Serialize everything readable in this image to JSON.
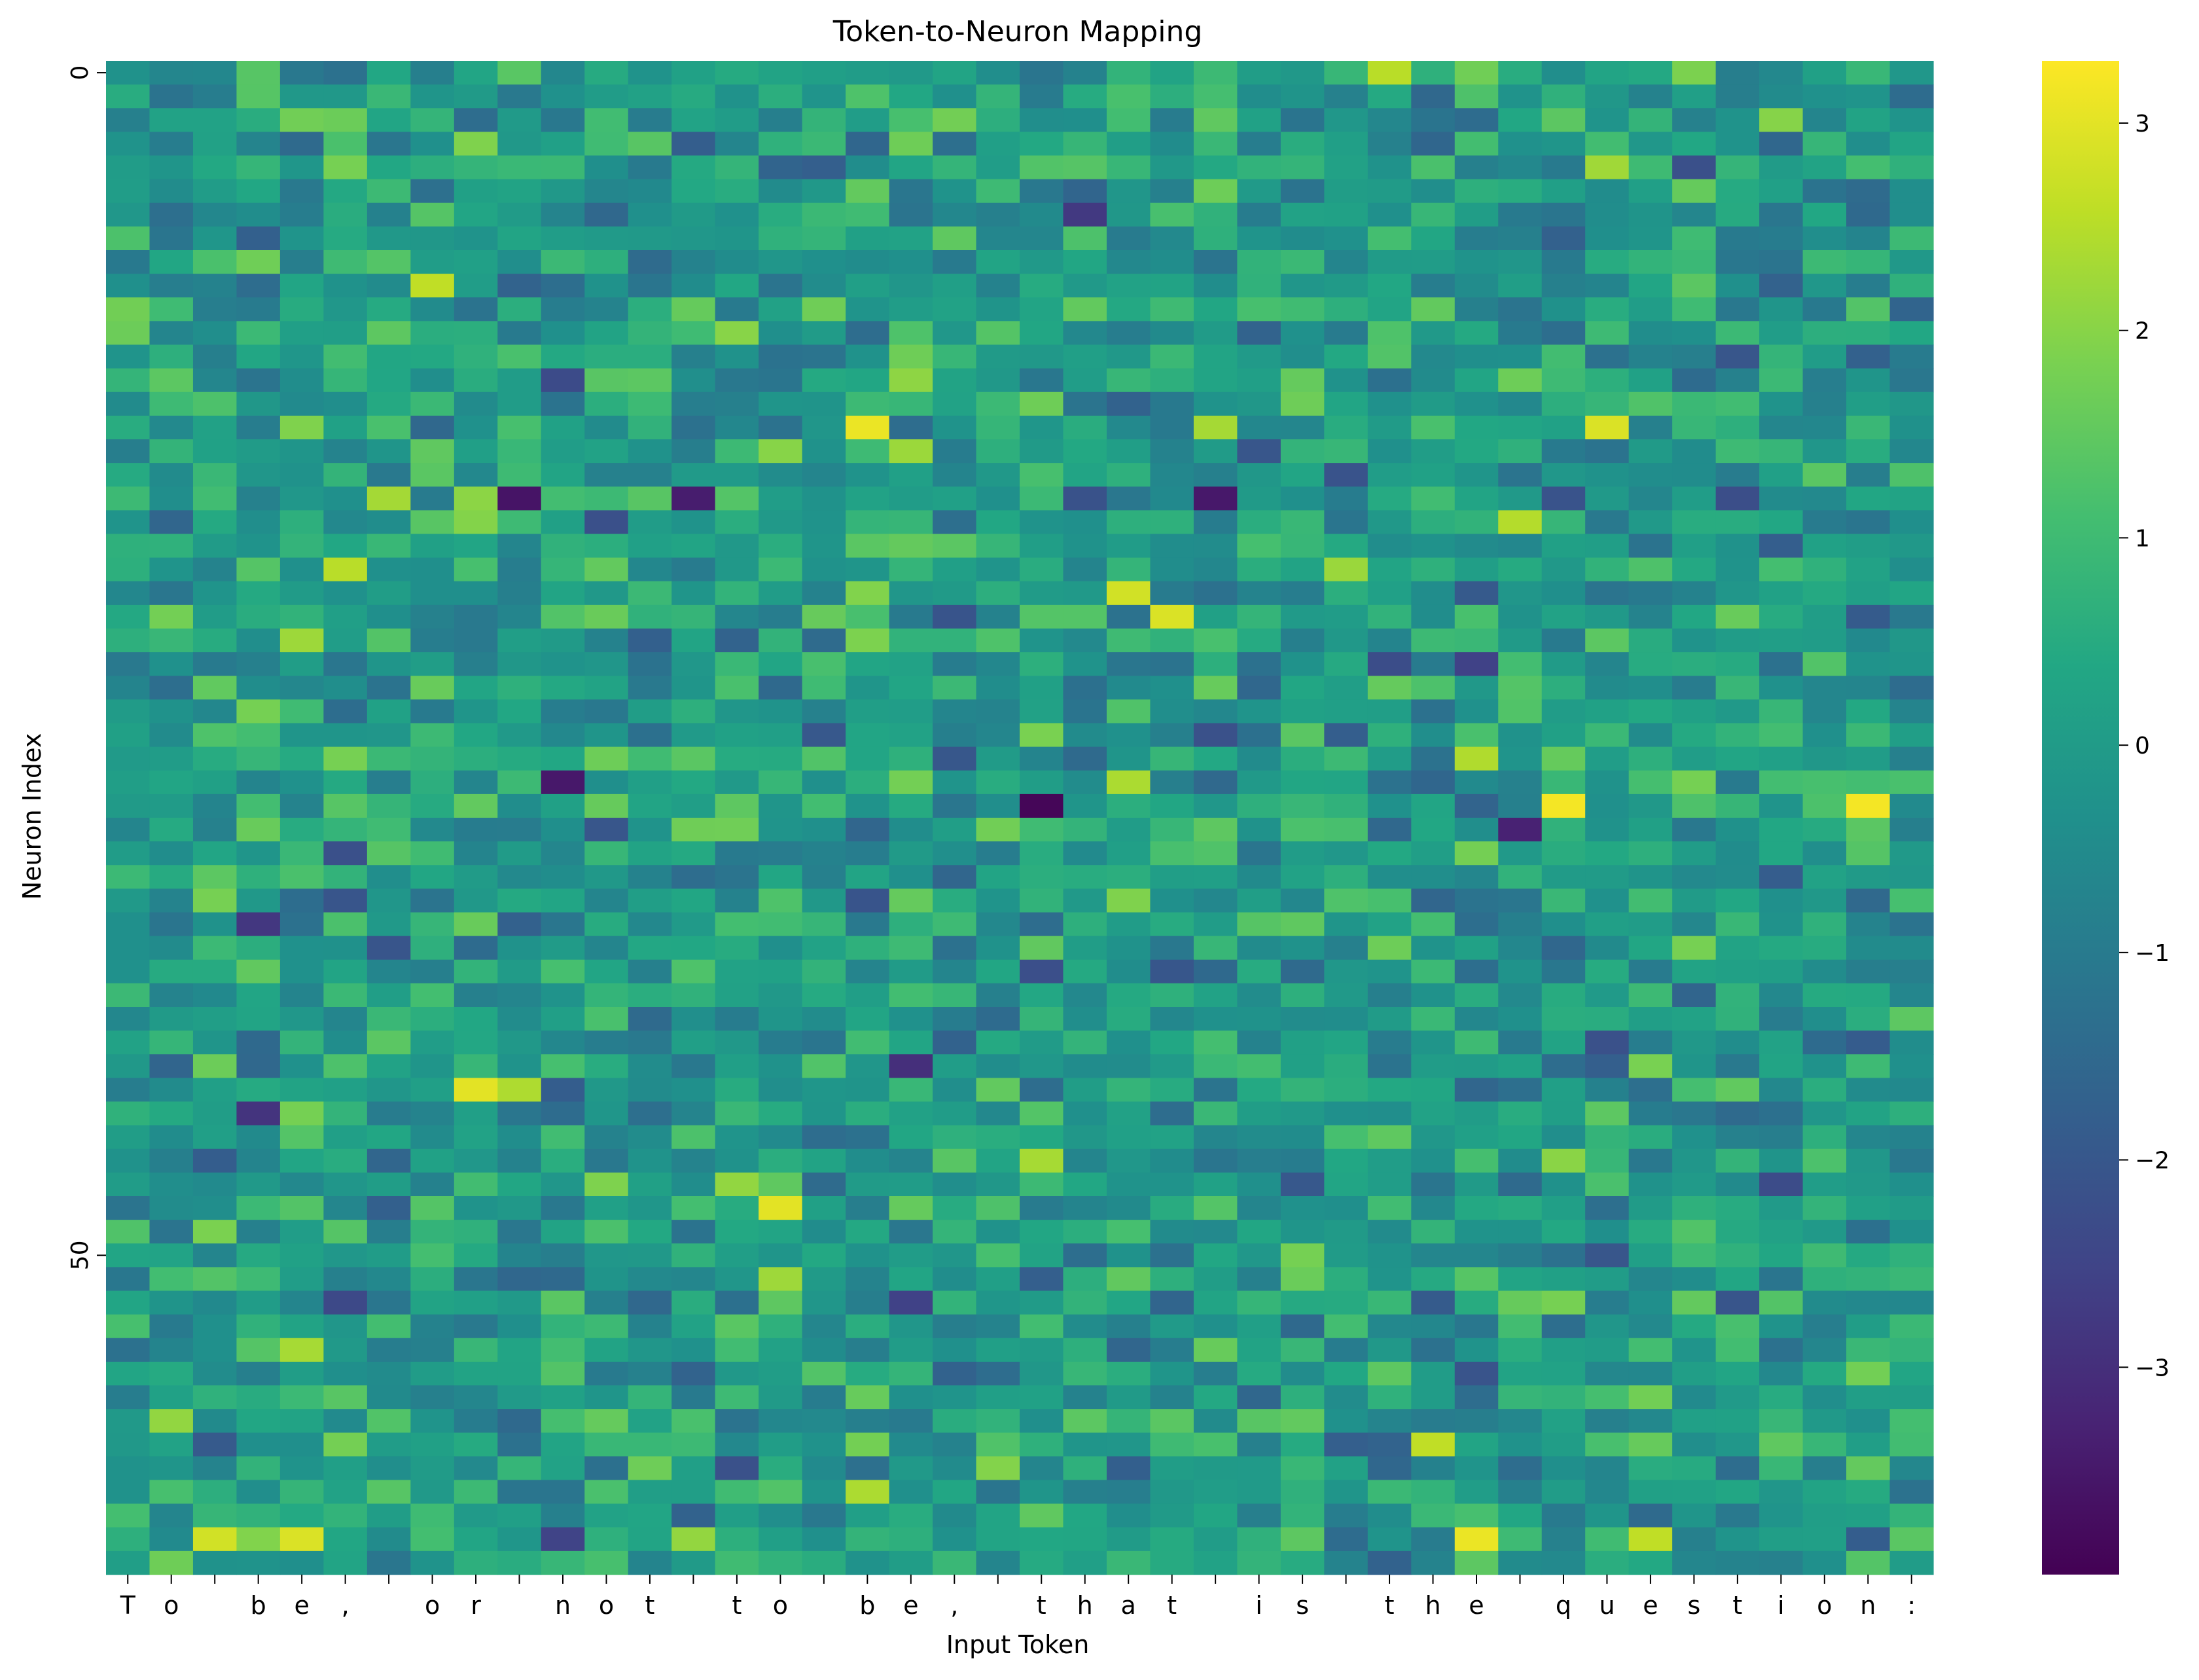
{
  "chart_data": {
    "type": "heatmap",
    "title": "Token-to-Neuron Mapping",
    "xlabel": "Input Token",
    "ylabel": "Neuron Index",
    "x_tick_labels": [
      "T",
      "o",
      " ",
      "b",
      "e",
      ",",
      " ",
      "o",
      "r",
      " ",
      "n",
      "o",
      "t",
      " ",
      "t",
      "o",
      " ",
      "b",
      "e",
      ",",
      " ",
      "t",
      "h",
      "a",
      "t",
      " ",
      "i",
      "s",
      " ",
      "t",
      "h",
      "e",
      " ",
      "q",
      "u",
      "e",
      "s",
      "t",
      "i",
      "o",
      "n",
      ":"
    ],
    "y_tick_labels": [
      "0",
      "50"
    ],
    "y_tick_values": [
      0,
      50
    ],
    "rows": 64,
    "columns": 42,
    "colormap": "viridis",
    "colorbar_range": [
      -4.0,
      3.3
    ],
    "colorbar_ticks": [
      "−3",
      "−2",
      "−1",
      "0",
      "1",
      "2",
      "3"
    ],
    "colorbar_tick_values": [
      -3,
      -2,
      -1,
      0,
      1,
      2,
      3
    ],
    "highlights": [
      {
        "x": 17,
        "y": 15,
        "value": 3.1
      },
      {
        "x": 33,
        "y": 31,
        "value": 3.2
      },
      {
        "x": 40,
        "y": 31,
        "value": 3.2
      },
      {
        "x": 8,
        "y": 43,
        "value": 3.0
      },
      {
        "x": 15,
        "y": 48,
        "value": 3.0
      },
      {
        "x": 31,
        "y": 62,
        "value": 3.1
      },
      {
        "x": 4,
        "y": 62,
        "value": 2.9
      },
      {
        "x": 2,
        "y": 62,
        "value": 2.8
      },
      {
        "x": 24,
        "y": 23,
        "value": 2.9
      },
      {
        "x": 7,
        "y": 9,
        "value": 2.6
      },
      {
        "x": 23,
        "y": 22,
        "value": 2.8
      },
      {
        "x": 34,
        "y": 15,
        "value": 2.9
      },
      {
        "x": 21,
        "y": 31,
        "value": -3.9
      },
      {
        "x": 9,
        "y": 18,
        "value": -3.6
      },
      {
        "x": 25,
        "y": 18,
        "value": -3.5
      },
      {
        "x": 13,
        "y": 18,
        "value": -3.4
      },
      {
        "x": 10,
        "y": 30,
        "value": -3.5
      },
      {
        "x": 32,
        "y": 32,
        "value": -3.3
      },
      {
        "x": 18,
        "y": 42,
        "value": -3.0
      }
    ]
  }
}
